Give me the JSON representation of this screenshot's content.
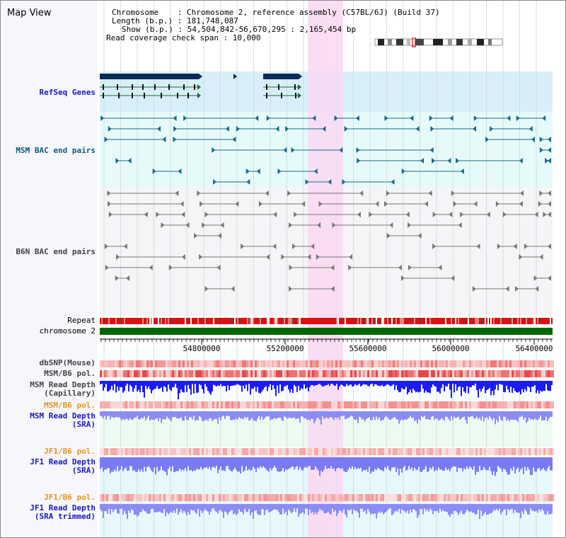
{
  "view_title": "Map View",
  "info_block": {
    "chromosome": "Chromosome    : Chromosome 2, reference assembly (C57BL/6J) (Build 37)",
    "length": "Length (b.p.) : 181,748,087",
    "show": "Show (b.p.) : 54,504,842-56,670,295 : 2,165,454 bp",
    "coverage": "Read coverage check span : 10,000"
  },
  "tracks": {
    "refseq": "RefSeq Genes",
    "msm_bac": "MSM BAC end pairs",
    "b6n_bac": "B6N BAC end pairs",
    "repeat": "Repeat",
    "chromosome": "chromosome 2",
    "dbsnp": "dbSNP(Mouse)",
    "msm_b6_pol": "MSM/B6 pol.",
    "msm_depth_cap_1": "MSM Read Depth",
    "msm_depth_cap_2": "(Capillary)",
    "msm_b6_pol2": "MSM/B6 pol.",
    "msm_depth_sra_1": "MSM Read Depth",
    "msm_depth_sra_2": "(SRA)",
    "jf1_b6_pol": "JF1/B6 pol.",
    "jf1_depth_sra_1": "JF1 Read Depth",
    "jf1_depth_sra_2": "(SRA)",
    "jf1_b6_pol2": "JF1/B6 pol.",
    "jf1_depth_trim_1": "JF1 Read Depth",
    "jf1_depth_trim_2": "(SRA trimmed)"
  },
  "axis": {
    "ticks": [
      "54800000",
      "55200000",
      "55600000",
      "56000000",
      "56400000"
    ]
  },
  "colors": {
    "refseq_bg": "#d8effa",
    "msm_bg": "#e6fafa",
    "b6n_bg": "#f5f5f7",
    "highlight": "#f8d8f2",
    "label_blue": "#1a1ab8",
    "label_orange": "#e6961e",
    "label_teal": "#0a5c78",
    "chrom_green": "#006600",
    "depth_blue": "#1c1cf0",
    "depth_light": "#8c8cf5",
    "gene_dark": "#0a2a5a"
  }
}
